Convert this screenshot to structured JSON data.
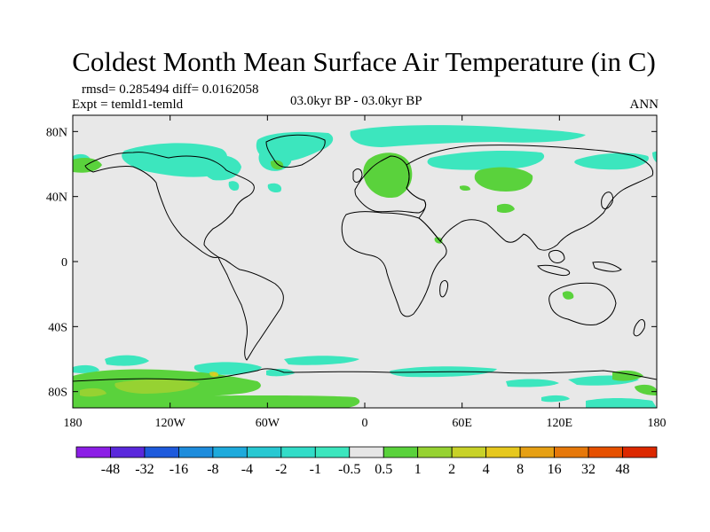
{
  "title": "Coldest Month Mean Surface Air Temperature (in C)",
  "stats": "rmsd= 0.285494 diff= 0.0162058",
  "expt": "Expt = temld1-temld",
  "period": "03.0kyr BP - 03.0kyr BP",
  "season": "ANN",
  "map": {
    "background_color": "#e8e8e8",
    "lon_range": [
      -180,
      180
    ],
    "lat_range": [
      -90,
      90
    ],
    "lat_ticks": [
      {
        "value": 80,
        "label": "80N"
      },
      {
        "value": 40,
        "label": "40N"
      },
      {
        "value": 0,
        "label": "0"
      },
      {
        "value": -40,
        "label": "40S"
      },
      {
        "value": -80,
        "label": "80S"
      }
    ],
    "lon_ticks": [
      {
        "value": -180,
        "label": "180"
      },
      {
        "value": -120,
        "label": "120W"
      },
      {
        "value": -60,
        "label": "60W"
      },
      {
        "value": 0,
        "label": "0"
      },
      {
        "value": 60,
        "label": "60E"
      },
      {
        "value": 120,
        "label": "120E"
      },
      {
        "value": 180,
        "label": "180"
      }
    ]
  },
  "colorbar": {
    "colors": [
      "#8c1ee6",
      "#5a28dc",
      "#1e5adc",
      "#1e8cdc",
      "#1eaadc",
      "#28c8d2",
      "#32dcc8",
      "#3ce6be",
      "#e6e6e6",
      "#5ad23c",
      "#96d232",
      "#c8d228",
      "#e6c81e",
      "#e6a014",
      "#e6780a",
      "#e65000",
      "#dc2800"
    ],
    "labels": [
      "-48",
      "-32",
      "-16",
      "-8",
      "-4",
      "-2",
      "-1",
      "-0.5",
      "0.5",
      "1",
      "2",
      "4",
      "8",
      "16",
      "32",
      "48"
    ]
  }
}
